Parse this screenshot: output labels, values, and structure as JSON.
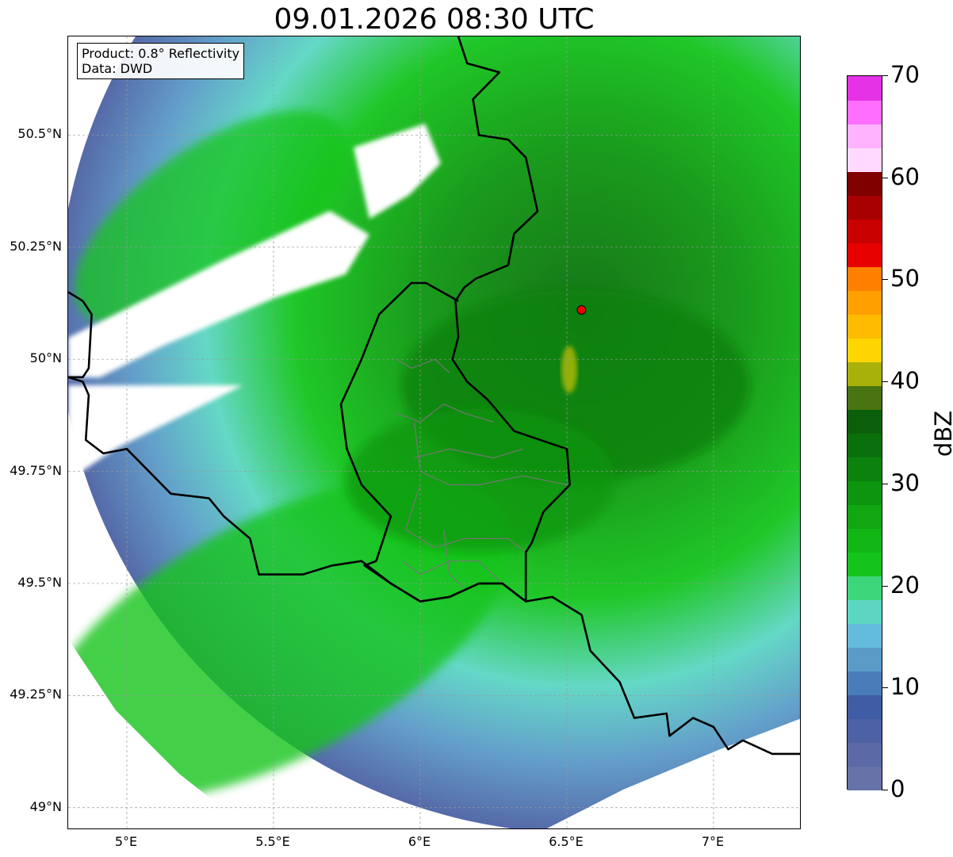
{
  "title": "09.01.2026 08:30 UTC",
  "info": {
    "product": "Product: 0.8° Reflectivity",
    "source": "Data: DWD"
  },
  "map": {
    "extent": {
      "lon": [
        4.8,
        7.3
      ],
      "lat": [
        48.95,
        50.72
      ]
    },
    "lat_ticks": [
      {
        "value": 50.5,
        "label": "50.5°N"
      },
      {
        "value": 50.25,
        "label": "50.25°N"
      },
      {
        "value": 50.0,
        "label": "50°N"
      },
      {
        "value": 49.75,
        "label": "49.75°N"
      },
      {
        "value": 49.5,
        "label": "49.5°N"
      },
      {
        "value": 49.25,
        "label": "49.25°N"
      },
      {
        "value": 49.0,
        "label": "49°N"
      }
    ],
    "lon_ticks": [
      {
        "value": 5.0,
        "label": "5°E"
      },
      {
        "value": 5.5,
        "label": "5.5°E"
      },
      {
        "value": 6.0,
        "label": "6°E"
      },
      {
        "value": 6.5,
        "label": "6.5°E"
      },
      {
        "value": 7.0,
        "label": "7°E"
      }
    ],
    "grid": true,
    "radar_site": {
      "lon": 6.55,
      "lat": 50.11,
      "color": "#e60000"
    },
    "borders": [
      [
        [
          6.13,
          50.72
        ],
        [
          6.16,
          50.66
        ],
        [
          6.27,
          50.64
        ],
        [
          6.18,
          50.58
        ],
        [
          6.2,
          50.5
        ],
        [
          6.3,
          50.49
        ],
        [
          6.36,
          50.45
        ],
        [
          6.4,
          50.33
        ],
        [
          6.32,
          50.28
        ],
        [
          6.3,
          50.21
        ],
        [
          6.19,
          50.18
        ],
        [
          6.15,
          50.16
        ],
        [
          6.12,
          50.13
        ],
        [
          6.13,
          50.05
        ],
        [
          6.11,
          50.0
        ],
        [
          6.16,
          49.95
        ],
        [
          6.23,
          49.91
        ],
        [
          6.32,
          49.84
        ],
        [
          6.5,
          49.8
        ],
        [
          6.51,
          49.72
        ],
        [
          6.42,
          49.66
        ],
        [
          6.38,
          49.59
        ],
        [
          6.36,
          49.57
        ],
        [
          6.36,
          49.46
        ]
      ],
      [
        [
          4.8,
          50.15
        ],
        [
          4.85,
          50.13
        ],
        [
          4.88,
          50.1
        ],
        [
          4.87,
          49.98
        ],
        [
          4.85,
          49.96
        ],
        [
          4.8,
          49.96
        ]
      ],
      [
        [
          4.8,
          49.96
        ],
        [
          4.85,
          49.95
        ],
        [
          4.87,
          49.92
        ],
        [
          4.86,
          49.82
        ],
        [
          4.92,
          49.79
        ],
        [
          5.0,
          49.8
        ],
        [
          5.15,
          49.7
        ],
        [
          5.28,
          49.69
        ],
        [
          5.33,
          49.65
        ],
        [
          5.42,
          49.6
        ],
        [
          5.45,
          49.52
        ],
        [
          5.6,
          49.52
        ],
        [
          5.7,
          49.54
        ],
        [
          5.8,
          49.55
        ],
        [
          5.9,
          49.5
        ],
        [
          6.0,
          49.46
        ],
        [
          6.1,
          49.47
        ],
        [
          6.2,
          49.5
        ],
        [
          6.28,
          49.5
        ],
        [
          6.36,
          49.46
        ],
        [
          6.45,
          49.47
        ],
        [
          6.55,
          49.43
        ],
        [
          6.58,
          49.35
        ],
        [
          6.68,
          49.28
        ],
        [
          6.73,
          49.2
        ],
        [
          6.84,
          49.21
        ],
        [
          6.85,
          49.16
        ],
        [
          6.93,
          49.2
        ],
        [
          7.0,
          49.18
        ],
        [
          7.05,
          49.13
        ],
        [
          7.1,
          49.15
        ],
        [
          7.2,
          49.12
        ],
        [
          7.3,
          49.12
        ]
      ],
      [
        [
          6.13,
          50.13
        ],
        [
          6.02,
          50.17
        ],
        [
          5.97,
          50.17
        ],
        [
          5.86,
          50.1
        ],
        [
          5.8,
          50.0
        ],
        [
          5.73,
          49.9
        ],
        [
          5.75,
          49.8
        ],
        [
          5.8,
          49.72
        ],
        [
          5.9,
          49.65
        ],
        [
          5.85,
          49.55
        ],
        [
          5.81,
          49.54
        ],
        [
          5.9,
          49.5
        ],
        [
          6.0,
          49.46
        ],
        [
          6.1,
          49.47
        ],
        [
          6.2,
          49.5
        ],
        [
          6.28,
          49.5
        ],
        [
          6.36,
          49.46
        ]
      ]
    ],
    "districts": [
      [
        [
          5.92,
          50.0
        ],
        [
          5.97,
          49.98
        ],
        [
          6.05,
          50.0
        ],
        [
          6.1,
          49.97
        ]
      ],
      [
        [
          5.92,
          49.88
        ],
        [
          6.0,
          49.86
        ],
        [
          6.08,
          49.9
        ],
        [
          6.15,
          49.88
        ],
        [
          6.25,
          49.86
        ]
      ],
      [
        [
          5.98,
          49.86
        ],
        [
          6.0,
          49.75
        ],
        [
          6.1,
          49.72
        ],
        [
          6.2,
          49.72
        ],
        [
          6.35,
          49.74
        ],
        [
          6.5,
          49.72
        ]
      ],
      [
        [
          5.98,
          49.78
        ],
        [
          6.1,
          49.8
        ],
        [
          6.25,
          49.78
        ],
        [
          6.35,
          49.8
        ]
      ],
      [
        [
          6.0,
          49.72
        ],
        [
          5.95,
          49.62
        ],
        [
          6.05,
          49.58
        ],
        [
          6.15,
          49.6
        ],
        [
          6.3,
          49.6
        ],
        [
          6.36,
          49.57
        ]
      ],
      [
        [
          6.08,
          49.62
        ],
        [
          6.1,
          49.52
        ],
        [
          6.15,
          49.49
        ]
      ],
      [
        [
          5.94,
          49.55
        ],
        [
          6.0,
          49.52
        ],
        [
          6.1,
          49.55
        ],
        [
          6.2,
          49.55
        ],
        [
          6.28,
          49.5
        ]
      ]
    ]
  },
  "colorbar": {
    "label": "dBZ",
    "min": 0,
    "max": 70,
    "step": 2.5,
    "ticks": [
      0,
      10,
      20,
      30,
      40,
      50,
      60,
      70
    ],
    "colors": [
      "#6672a8",
      "#5b6aa6",
      "#4d62a4",
      "#3f5ca5",
      "#4a7cba",
      "#5b9bc8",
      "#63bcdc",
      "#5cd6c3",
      "#3dd67a",
      "#14c41c",
      "#12b615",
      "#11a612",
      "#0e9510",
      "#0c820e",
      "#0a700c",
      "#0b5f0b",
      "#4a7411",
      "#a8b00a",
      "#ffd500",
      "#ffbb00",
      "#ff9f00",
      "#ff7f00",
      "#e60000",
      "#c80000",
      "#a80000",
      "#800000",
      "#ffd9ff",
      "#ffb3ff",
      "#ff6eff",
      "#e632e6"
    ]
  }
}
